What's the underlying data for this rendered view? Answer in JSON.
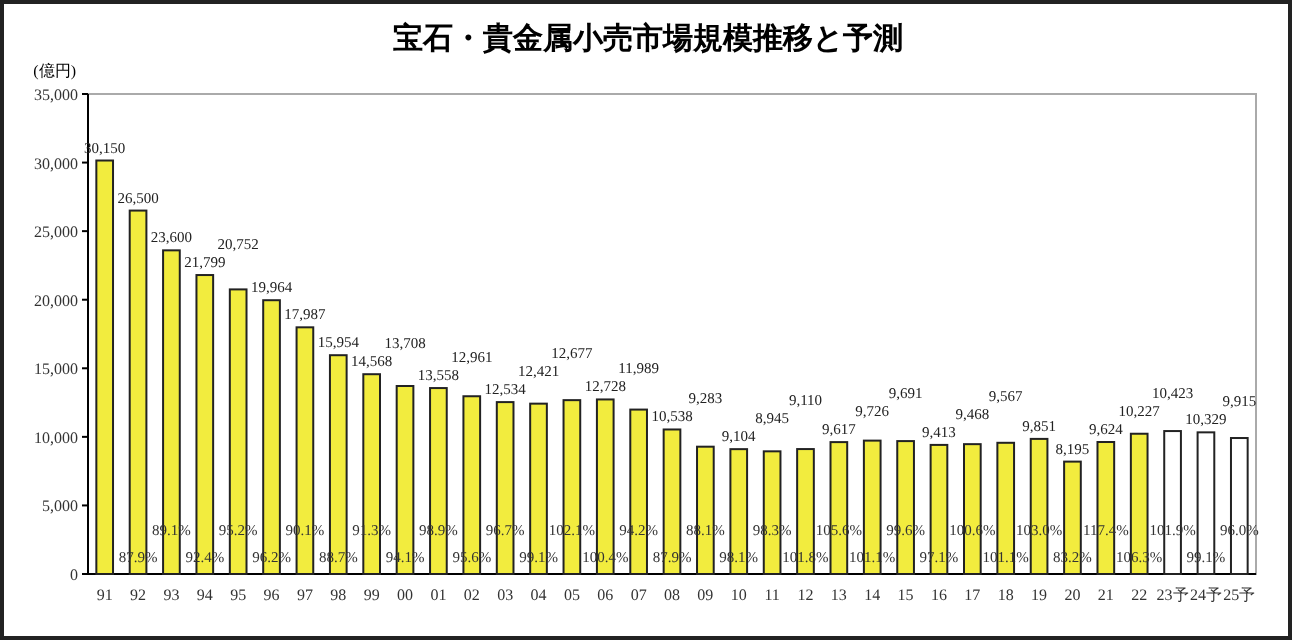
{
  "chart_data": {
    "type": "bar",
    "title": "宝石・貴金属小売市場規模推移と予測",
    "ylabel": "(億円)",
    "categories": [
      "91",
      "92",
      "93",
      "94",
      "95",
      "96",
      "97",
      "98",
      "99",
      "00",
      "01",
      "02",
      "03",
      "04",
      "05",
      "06",
      "07",
      "08",
      "09",
      "10",
      "11",
      "12",
      "13",
      "14",
      "15",
      "16",
      "17",
      "18",
      "19",
      "20",
      "21",
      "22",
      "23予",
      "24予",
      "25予"
    ],
    "values": [
      30150,
      26500,
      23600,
      21799,
      20752,
      19964,
      17987,
      15954,
      14568,
      13708,
      13558,
      12961,
      12534,
      12421,
      12677,
      12728,
      11989,
      10538,
      9283,
      9104,
      8945,
      9110,
      9617,
      9726,
      9691,
      9413,
      9468,
      9567,
      9851,
      8195,
      9624,
      10227,
      10423,
      10329,
      9915
    ],
    "colors": [
      "#f2ec3e",
      "#f2ec3e",
      "#f2ec3e",
      "#f2ec3e",
      "#f2ec3e",
      "#f2ec3e",
      "#f2ec3e",
      "#f2ec3e",
      "#f2ec3e",
      "#f2ec3e",
      "#f2ec3e",
      "#f2ec3e",
      "#f2ec3e",
      "#f2ec3e",
      "#f2ec3e",
      "#f2ec3e",
      "#f2ec3e",
      "#f2ec3e",
      "#f2ec3e",
      "#f2ec3e",
      "#f2ec3e",
      "#f2ec3e",
      "#f2ec3e",
      "#f2ec3e",
      "#f2ec3e",
      "#f2ec3e",
      "#f2ec3e",
      "#f2ec3e",
      "#f2ec3e",
      "#f2ec3e",
      "#f2ec3e",
      "#f2ec3e",
      "#ffffff",
      "#ffffff",
      "#ffffff"
    ],
    "value_labels": [
      "30,150",
      "26,500",
      "23,600",
      "21,799",
      "20,752",
      "19,964",
      "17,987",
      "15,954",
      "14,568",
      "13,708",
      "13,558",
      "12,961",
      "12,534",
      "12,421",
      "12,677",
      "12,728",
      "11,989",
      "10,538",
      "9,283",
      "9,104",
      "8,945",
      "9,110",
      "9,617",
      "9,726",
      "9,691",
      "9,413",
      "9,468",
      "9,567",
      "9,851",
      "8,195",
      "9,624",
      "10,227",
      "10,423",
      "10,329",
      "9,915"
    ],
    "ylim": [
      0,
      35000
    ],
    "yticks": [
      0,
      {
        "value": 5000,
        "label": "5,000"
      },
      {
        "value": 10000,
        "label": "10,000"
      },
      {
        "value": 15000,
        "label": "15,000"
      },
      {
        "value": 20000,
        "label": "20,000"
      },
      {
        "value": 25000,
        "label": "25,000"
      },
      {
        "value": 30000,
        "label": "30,000"
      },
      {
        "value": 35000,
        "label": "35,000"
      }
    ],
    "grid": false,
    "annotations": [
      {
        "text": "87.9%",
        "x": "92",
        "y": 1300
      },
      {
        "text": "89.1%",
        "x": "93",
        "y": 3300
      },
      {
        "text": "92.4%",
        "x": "94",
        "y": 1300
      },
      {
        "text": "95.2%",
        "x": "95",
        "y": 3300
      },
      {
        "text": "96.2%",
        "x": "96",
        "y": 1300
      },
      {
        "text": "90.1%",
        "x": "97",
        "y": 3300
      },
      {
        "text": "88.7%",
        "x": "98",
        "y": 1300
      },
      {
        "text": "91.3%",
        "x": "99",
        "y": 3300
      },
      {
        "text": "94.1%",
        "x": "00",
        "y": 1300
      },
      {
        "text": "98.9%",
        "x": "01",
        "y": 3300
      },
      {
        "text": "95.6%",
        "x": "02",
        "y": 1300
      },
      {
        "text": "96.7%",
        "x": "03",
        "y": 3300
      },
      {
        "text": "99.1%",
        "x": "04",
        "y": 1300
      },
      {
        "text": "102.1%",
        "x": "05",
        "y": 3300
      },
      {
        "text": "100.4%",
        "x": "06",
        "y": 1300
      },
      {
        "text": "94.2%",
        "x": "07",
        "y": 3300
      },
      {
        "text": "87.9%",
        "x": "08",
        "y": 1300
      },
      {
        "text": "88.1%",
        "x": "09",
        "y": 3300
      },
      {
        "text": "98.1%",
        "x": "10",
        "y": 1300
      },
      {
        "text": "98.3%",
        "x": "11",
        "y": 3300
      },
      {
        "text": "101.8%",
        "x": "12",
        "y": 1300
      },
      {
        "text": "105.6%",
        "x": "13",
        "y": 3300
      },
      {
        "text": "101.1%",
        "x": "14",
        "y": 1300
      },
      {
        "text": "99.6%",
        "x": "15",
        "y": 3300
      },
      {
        "text": "97.1%",
        "x": "16",
        "y": 1300
      },
      {
        "text": "100.6%",
        "x": "17",
        "y": 3300
      },
      {
        "text": "101.1%",
        "x": "18",
        "y": 1300
      },
      {
        "text": "103.0%",
        "x": "19",
        "y": 3300
      },
      {
        "text": "83.2%",
        "x": "20",
        "y": 1300
      },
      {
        "text": "117.4%",
        "x": "21",
        "y": 3300
      },
      {
        "text": "106.3%",
        "x": "22",
        "y": 1300
      },
      {
        "text": "101.9%",
        "x": "23予",
        "y": 3300
      },
      {
        "text": "99.1%",
        "x": "24予",
        "y": 1300
      },
      {
        "text": "96.0%",
        "x": "25予",
        "y": 3300
      }
    ]
  }
}
